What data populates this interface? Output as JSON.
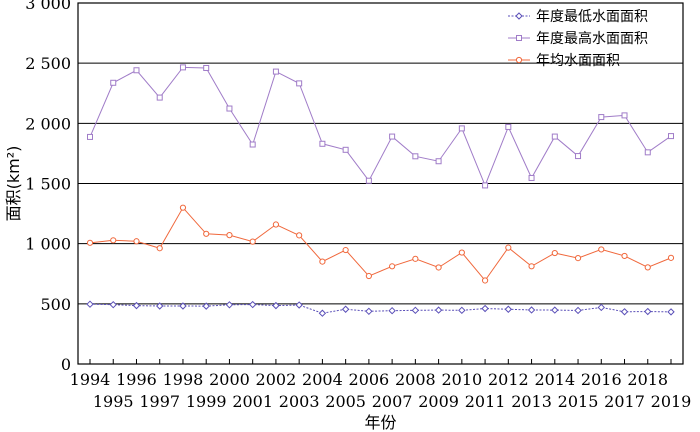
{
  "chart_data": {
    "type": "line",
    "xlabel": "年份",
    "ylabel": "面积(km²)",
    "ylim": [
      0,
      3000
    ],
    "yticks": [
      {
        "value": 0,
        "label": "0"
      },
      {
        "value": 500,
        "label": "500"
      },
      {
        "value": 1000,
        "label": "1 000"
      },
      {
        "value": 1500,
        "label": "1 500"
      },
      {
        "value": 2000,
        "label": "2 000"
      },
      {
        "value": 2500,
        "label": "2 500"
      },
      {
        "value": 3000,
        "label": "3 000"
      }
    ],
    "grid": "horizontal",
    "legend_position": "top-right",
    "x": [
      "1994",
      "1995",
      "1996",
      "1997",
      "1998",
      "1999",
      "2000",
      "2001",
      "2002",
      "2003",
      "2004",
      "2005",
      "2006",
      "2007",
      "2008",
      "2009",
      "2010",
      "2011",
      "2012",
      "2013",
      "2014",
      "2015",
      "2016",
      "2017",
      "2018",
      "2019"
    ],
    "series": [
      {
        "name": "年度最低水面面积",
        "color": "#5a4fb8",
        "marker": "diamond",
        "values": [
          497,
          493,
          485,
          482,
          482,
          481,
          492,
          494,
          485,
          490,
          422,
          455,
          438,
          443,
          446,
          448,
          446,
          461,
          455,
          449,
          448,
          445,
          470,
          434,
          436,
          433
        ]
      },
      {
        "name": "年度最高水面面积",
        "color": "#a07cc8",
        "marker": "square",
        "values": [
          1887,
          2337,
          2441,
          2214,
          2465,
          2460,
          2123,
          1824,
          2430,
          2332,
          1830,
          1780,
          1523,
          1890,
          1726,
          1685,
          1958,
          1484,
          1970,
          1546,
          1890,
          1728,
          2052,
          2066,
          1759,
          1894
        ]
      },
      {
        "name": "年均水面面积",
        "color": "#f0683c",
        "marker": "circle",
        "values": [
          1007,
          1028,
          1020,
          962,
          1299,
          1082,
          1071,
          1017,
          1159,
          1069,
          851,
          947,
          731,
          812,
          874,
          802,
          926,
          694,
          967,
          812,
          922,
          880,
          952,
          898,
          803,
          882
        ]
      }
    ]
  }
}
